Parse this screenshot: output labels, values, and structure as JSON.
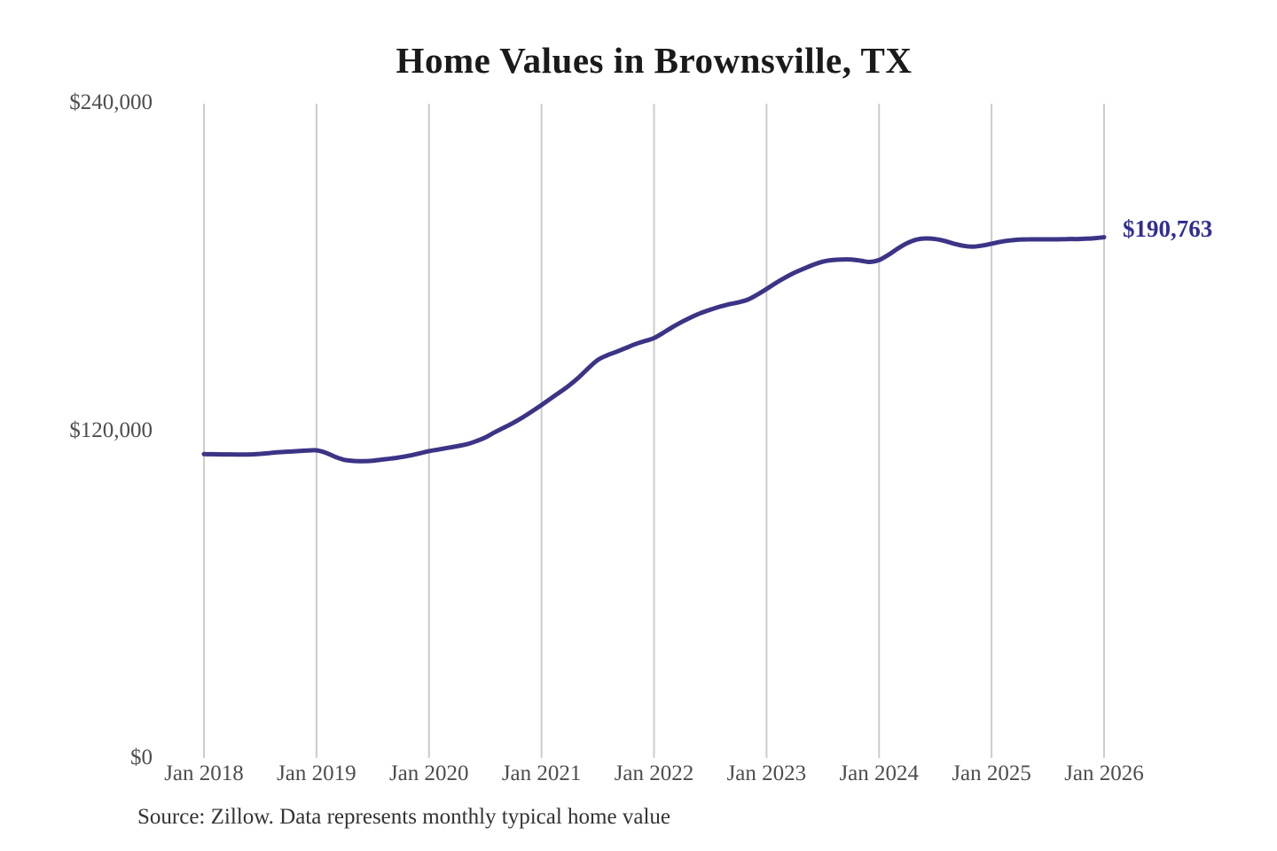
{
  "chart_data": {
    "type": "line",
    "title": "Home Values in Brownsville, TX",
    "source_note": "Source: Zillow. Data represents monthly typical home value",
    "xlabel": "",
    "ylabel": "",
    "ylim": [
      0,
      240000
    ],
    "grid": "vertical-only",
    "legend": "none",
    "x_ticks": [
      "Jan 2018",
      "Jan 2019",
      "Jan 2020",
      "Jan 2021",
      "Jan 2022",
      "Jan 2023",
      "Jan 2024",
      "Jan 2025",
      "Jan 2026"
    ],
    "y_ticks": [
      {
        "label": "$240,000",
        "value": 240000
      },
      {
        "label": "$120,000",
        "value": 120000
      },
      {
        "label": "$0",
        "value": 0
      }
    ],
    "end_annotation": {
      "label": "$190,763",
      "value": 190763
    },
    "series": [
      {
        "name": "Typical home value (USD)",
        "interval": "monthly",
        "start": "Jan 2018",
        "end": "Jan 2026",
        "values": [
          111300,
          111250,
          111200,
          111200,
          111150,
          111200,
          111400,
          111700,
          112000,
          112200,
          112400,
          112600,
          112700,
          111800,
          110300,
          109200,
          108800,
          108700,
          108900,
          109300,
          109700,
          110200,
          110800,
          111600,
          112400,
          113000,
          113600,
          114200,
          114900,
          116000,
          117400,
          119300,
          121000,
          122800,
          124800,
          127000,
          129300,
          131700,
          134100,
          136600,
          139500,
          142800,
          145800,
          147500,
          148800,
          150200,
          151600,
          152700,
          153800,
          155800,
          157900,
          159800,
          161500,
          163000,
          164200,
          165300,
          166200,
          166900,
          167900,
          169700,
          171800,
          174000,
          176000,
          177800,
          179300,
          180700,
          181800,
          182400,
          182600,
          182600,
          182200,
          181700,
          182400,
          184300,
          186600,
          188600,
          189900,
          190300,
          190100,
          189400,
          188400,
          187600,
          187300,
          187700,
          188400,
          189100,
          189600,
          189900,
          190000,
          190000,
          190000,
          190000,
          190100,
          190100,
          190200,
          190400,
          190763
        ]
      }
    ],
    "colors": {
      "line": "#3b3486",
      "annotation": "#312e93",
      "grid": "#cccccc",
      "axis_text": "#4d4d4d",
      "title": "#1a1a1a",
      "source_text": "#333333",
      "background": "#ffffff"
    }
  }
}
